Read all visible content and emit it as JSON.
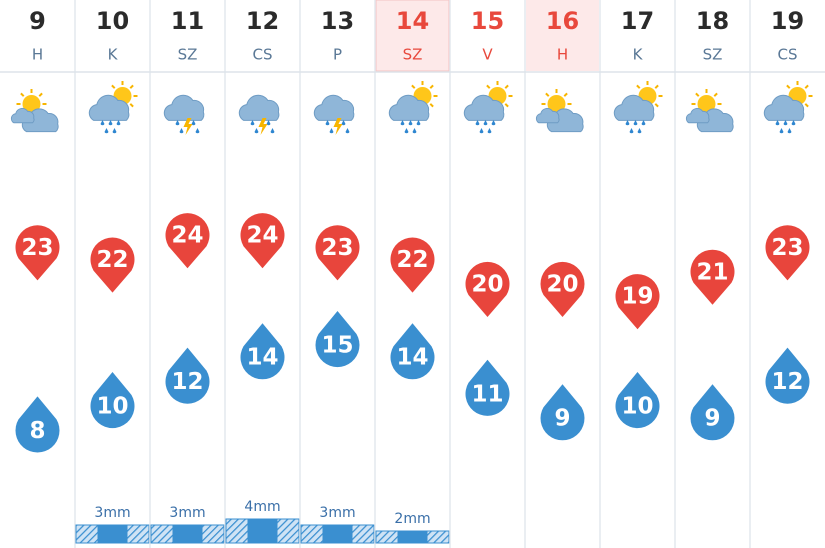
{
  "days": [
    {
      "date": "9",
      "weekday": "H",
      "weekend": false,
      "max": 23,
      "min": 8,
      "precip": null,
      "precip_label": null
    },
    {
      "date": "10",
      "weekday": "K",
      "weekend": false,
      "max": 22,
      "min": 10,
      "precip": 3,
      "precip_label": "3mm"
    },
    {
      "date": "11",
      "weekday": "SZ",
      "weekend": false,
      "max": 24,
      "min": 12,
      "precip": 3,
      "precip_label": "3mm"
    },
    {
      "date": "12",
      "weekday": "CS",
      "weekend": false,
      "max": 24,
      "min": 14,
      "precip": 4,
      "precip_label": "4mm"
    },
    {
      "date": "13",
      "weekday": "P",
      "weekend": false,
      "max": 23,
      "min": 15,
      "precip": 3,
      "precip_label": "3mm"
    },
    {
      "date": "14",
      "weekday": "SZ",
      "weekend": true,
      "max": 22,
      "min": 14,
      "precip": 2,
      "precip_label": "2mm"
    },
    {
      "date": "15",
      "weekday": "V",
      "weekend": true,
      "max": 20,
      "min": 11,
      "precip": null,
      "precip_label": null
    },
    {
      "date": "16",
      "weekday": "H",
      "weekend": true,
      "max": 20,
      "min": 9,
      "precip": null,
      "precip_label": null
    },
    {
      "date": "17",
      "weekday": "K",
      "weekend": false,
      "max": 19,
      "min": 10,
      "precip": null,
      "precip_label": null
    },
    {
      "date": "18",
      "weekday": "SZ",
      "weekend": false,
      "max": 21,
      "min": 9,
      "precip": null,
      "precip_label": null
    },
    {
      "date": "19",
      "weekday": "CS",
      "weekend": false,
      "max": 23,
      "min": 12,
      "precip": null,
      "precip_label": null
    }
  ]
}
